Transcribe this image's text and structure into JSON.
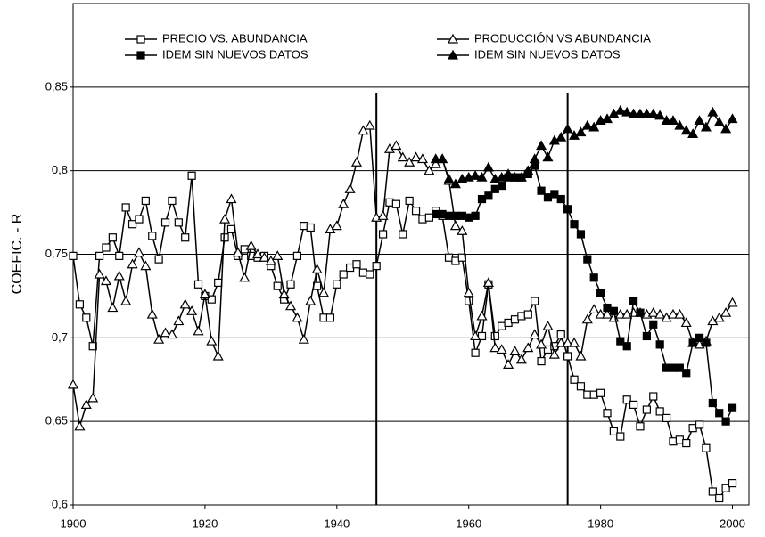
{
  "chart_data": {
    "type": "line",
    "y_label": "COEFIC. - R",
    "xlim": [
      1900,
      2002.5
    ],
    "xticks": [
      1900,
      1920,
      1940,
      1960,
      1980,
      2000
    ],
    "ylim": [
      0.6,
      0.9
    ],
    "yticks": [
      {
        "value": 0.6,
        "label": "0,6"
      },
      {
        "value": 0.65,
        "label": "0,65"
      },
      {
        "value": 0.7,
        "label": "0,7"
      },
      {
        "value": 0.75,
        "label": "0,75"
      },
      {
        "value": 0.8,
        "label": "0,8"
      },
      {
        "value": 0.85,
        "label": "0,85"
      }
    ],
    "grid": true,
    "legend": "upper center",
    "vlines": [
      1946,
      1975
    ],
    "series": [
      {
        "name": "PRECIO VS. ABUNDANCIA",
        "color": "#000000",
        "marker": "square",
        "marker_fill": "#ffffff",
        "x": [
          1900,
          1901,
          1902,
          1903,
          1904,
          1905,
          1906,
          1907,
          1908,
          1909,
          1910,
          1911,
          1912,
          1913,
          1914,
          1915,
          1916,
          1917,
          1918,
          1919,
          1920,
          1921,
          1922,
          1923,
          1924,
          1925,
          1926,
          1927,
          1928,
          1929,
          1930,
          1931,
          1932,
          1933,
          1934,
          1935,
          1936,
          1937,
          1938,
          1939,
          1940,
          1941,
          1942,
          1943,
          1944,
          1945,
          1946,
          1947,
          1948,
          1949,
          1950,
          1951,
          1952,
          1953,
          1954,
          1955,
          1956,
          1957,
          1958,
          1959,
          1960,
          1961,
          1962,
          1963,
          1964,
          1965,
          1966,
          1967,
          1968,
          1969,
          1970,
          1971,
          1972,
          1973,
          1974,
          1975,
          1976,
          1977,
          1978,
          1979,
          1980,
          1981,
          1982,
          1983,
          1984,
          1985,
          1986,
          1987,
          1988,
          1989,
          1990,
          1991,
          1992,
          1993,
          1994,
          1995,
          1996,
          1997,
          1998,
          1999,
          2000
        ],
        "values": [
          0.749,
          0.72,
          0.712,
          0.695,
          0.749,
          0.754,
          0.76,
          0.749,
          0.778,
          0.768,
          0.771,
          0.782,
          0.761,
          0.747,
          0.769,
          0.782,
          0.769,
          0.76,
          0.797,
          0.732,
          0.725,
          0.723,
          0.733,
          0.76,
          0.765,
          0.749,
          0.753,
          0.749,
          0.748,
          0.749,
          0.743,
          0.731,
          0.723,
          0.732,
          0.749,
          0.767,
          0.766,
          0.731,
          0.712,
          0.712,
          0.732,
          0.738,
          0.742,
          0.744,
          0.739,
          0.738,
          0.743,
          0.762,
          0.781,
          0.78,
          0.762,
          0.782,
          0.776,
          0.771,
          0.772,
          0.776,
          0.773,
          0.748,
          0.746,
          0.748,
          0.722,
          0.691,
          0.701,
          0.732,
          0.701,
          0.707,
          0.709,
          0.711,
          0.713,
          0.714,
          0.722,
          0.686,
          0.693,
          0.695,
          0.702,
          0.689,
          0.675,
          0.671,
          0.666,
          0.666,
          0.667,
          0.655,
          0.644,
          0.641,
          0.663,
          0.66,
          0.647,
          0.657,
          0.665,
          0.656,
          0.652,
          0.638,
          0.639,
          0.637,
          0.646,
          0.648,
          0.634,
          0.608,
          0.604,
          0.61,
          0.613
        ]
      },
      {
        "name": "PRODUCCIÓN VS ABUNDANCIA",
        "color": "#000000",
        "marker": "triangle",
        "marker_fill": "#ffffff",
        "x": [
          1900,
          1901,
          1902,
          1903,
          1904,
          1905,
          1906,
          1907,
          1908,
          1909,
          1910,
          1911,
          1912,
          1913,
          1914,
          1915,
          1916,
          1917,
          1918,
          1919,
          1920,
          1921,
          1922,
          1923,
          1924,
          1925,
          1926,
          1927,
          1928,
          1929,
          1930,
          1931,
          1932,
          1933,
          1934,
          1935,
          1936,
          1937,
          1938,
          1939,
          1940,
          1941,
          1942,
          1943,
          1944,
          1945,
          1946,
          1947,
          1948,
          1949,
          1950,
          1951,
          1952,
          1953,
          1954,
          1955,
          1956,
          1957,
          1958,
          1959,
          1960,
          1961,
          1962,
          1963,
          1964,
          1965,
          1966,
          1967,
          1968,
          1969,
          1970,
          1971,
          1972,
          1973,
          1974,
          1975,
          1976,
          1977,
          1978,
          1979,
          1980,
          1981,
          1982,
          1983,
          1984,
          1985,
          1986,
          1987,
          1988,
          1989,
          1990,
          1991,
          1992,
          1993,
          1994,
          1995,
          1996,
          1997,
          1998,
          1999,
          2000
        ],
        "values": [
          0.672,
          0.647,
          0.66,
          0.664,
          0.738,
          0.734,
          0.718,
          0.737,
          0.722,
          0.744,
          0.751,
          0.743,
          0.714,
          0.699,
          0.703,
          0.702,
          0.71,
          0.72,
          0.716,
          0.704,
          0.726,
          0.698,
          0.689,
          0.771,
          0.783,
          0.751,
          0.736,
          0.755,
          0.75,
          0.748,
          0.746,
          0.749,
          0.726,
          0.719,
          0.712,
          0.699,
          0.722,
          0.741,
          0.727,
          0.765,
          0.767,
          0.78,
          0.789,
          0.805,
          0.824,
          0.827,
          0.772,
          0.773,
          0.813,
          0.815,
          0.808,
          0.805,
          0.808,
          0.807,
          0.8,
          0.804,
          0.807,
          0.794,
          0.767,
          0.764,
          0.727,
          0.701,
          0.713,
          0.733,
          0.694,
          0.693,
          0.684,
          0.692,
          0.687,
          0.694,
          0.702,
          0.696,
          0.707,
          0.69,
          0.697,
          0.697,
          0.697,
          0.689,
          0.711,
          0.717,
          0.714,
          0.714,
          0.712,
          0.714,
          0.714,
          0.715,
          0.715,
          0.714,
          0.715,
          0.714,
          0.712,
          0.714,
          0.714,
          0.709,
          0.697,
          0.696,
          0.698,
          0.71,
          0.712,
          0.715,
          0.721
        ]
      },
      {
        "name": "IDEM SIN NUEVOS DATOS",
        "color": "#000000",
        "marker": "square",
        "marker_fill": "#000000",
        "x": [
          1955,
          1956,
          1957,
          1958,
          1959,
          1960,
          1961,
          1962,
          1963,
          1964,
          1965,
          1966,
          1967,
          1968,
          1969,
          1970,
          1971,
          1972,
          1973,
          1974,
          1975,
          1976,
          1977,
          1978,
          1979,
          1980,
          1981,
          1982,
          1983,
          1984,
          1985,
          1986,
          1987,
          1988,
          1989,
          1990,
          1991,
          1992,
          1993,
          1994,
          1995,
          1996,
          1997,
          1998,
          1999,
          2000
        ],
        "values": [
          0.774,
          0.774,
          0.773,
          0.773,
          0.773,
          0.772,
          0.773,
          0.783,
          0.785,
          0.789,
          0.791,
          0.796,
          0.796,
          0.796,
          0.798,
          0.803,
          0.788,
          0.784,
          0.786,
          0.783,
          0.777,
          0.768,
          0.762,
          0.747,
          0.736,
          0.727,
          0.718,
          0.716,
          0.698,
          0.695,
          0.722,
          0.715,
          0.701,
          0.708,
          0.696,
          0.682,
          0.682,
          0.682,
          0.679,
          0.697,
          0.7,
          0.697,
          0.661,
          0.655,
          0.65,
          0.658
        ]
      },
      {
        "name": "IDEM SIN NUEVOS DATOS",
        "color": "#000000",
        "marker": "triangle",
        "marker_fill": "#000000",
        "x": [
          1955,
          1956,
          1957,
          1958,
          1959,
          1960,
          1961,
          1962,
          1963,
          1964,
          1965,
          1966,
          1967,
          1968,
          1969,
          1970,
          1971,
          1972,
          1973,
          1974,
          1975,
          1976,
          1977,
          1978,
          1979,
          1980,
          1981,
          1982,
          1983,
          1984,
          1985,
          1986,
          1987,
          1988,
          1989,
          1990,
          1991,
          1992,
          1993,
          1994,
          1995,
          1996,
          1997,
          1998,
          1999,
          2000
        ],
        "values": [
          0.807,
          0.807,
          0.795,
          0.792,
          0.795,
          0.796,
          0.797,
          0.796,
          0.802,
          0.795,
          0.796,
          0.798,
          0.796,
          0.796,
          0.8,
          0.807,
          0.815,
          0.808,
          0.818,
          0.82,
          0.825,
          0.821,
          0.823,
          0.827,
          0.826,
          0.83,
          0.831,
          0.834,
          0.836,
          0.835,
          0.834,
          0.834,
          0.834,
          0.834,
          0.833,
          0.83,
          0.83,
          0.827,
          0.824,
          0.822,
          0.83,
          0.826,
          0.835,
          0.829,
          0.825,
          0.831
        ]
      }
    ]
  }
}
